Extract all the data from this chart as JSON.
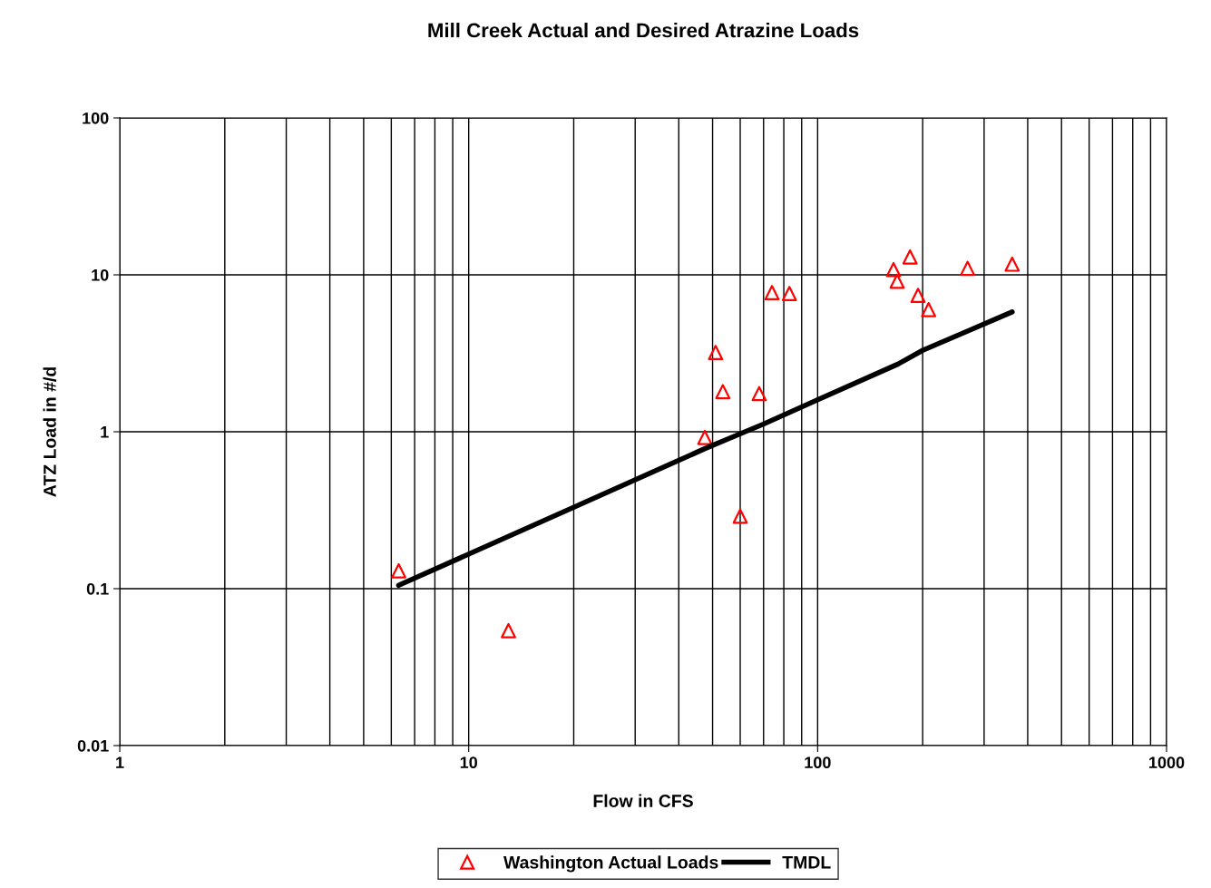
{
  "chart_data": {
    "type": "scatter",
    "title": "Mill Creek Actual and Desired Atrazine Loads",
    "xlabel": "Flow in CFS",
    "ylabel": "ATZ Load in #/d",
    "log": "xy",
    "grid": true,
    "legend": "bottom",
    "xlim": [
      1,
      1000
    ],
    "xticks": [
      1,
      10,
      100,
      1000
    ],
    "ylim": [
      0.01,
      100
    ],
    "yticks": [
      0.01,
      0.1,
      1,
      10,
      100
    ],
    "series": [
      {
        "name": "Washington Actual Loads",
        "marker": "triangle",
        "color": "#ff0000",
        "x": [
          6.3,
          13,
          47.5,
          51,
          53.5,
          60,
          68,
          74,
          83,
          165,
          169,
          184,
          194,
          208,
          269,
          361
        ],
        "values": [
          0.13,
          0.054,
          0.92,
          3.2,
          1.8,
          0.29,
          1.75,
          7.7,
          7.6,
          10.8,
          9.1,
          13,
          7.4,
          6,
          11,
          11.7
        ]
      },
      {
        "name": "TMDL",
        "type": "line",
        "marker": "none",
        "line_style": "solid",
        "color": "#000000",
        "x": [
          6.3,
          20,
          47.5,
          60,
          70,
          100,
          170,
          200,
          270,
          361
        ],
        "values": [
          0.105,
          0.33,
          0.78,
          0.97,
          1.12,
          1.6,
          2.7,
          3.3,
          4.4,
          5.8
        ]
      }
    ]
  }
}
